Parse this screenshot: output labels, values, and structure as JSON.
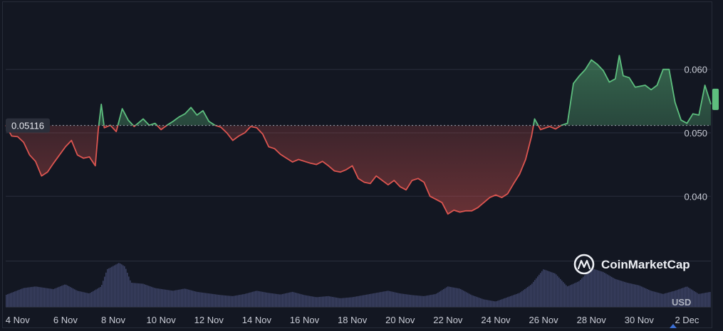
{
  "brand": {
    "name": "CoinMarketCap"
  },
  "currency": "USD",
  "colors": {
    "background": "#131722",
    "up": "#5dbe7e",
    "down": "#dc5550",
    "volume": "#3b4163",
    "grid": "#2a2f3d",
    "reference": "#9aa0ad",
    "text": "#c9ccd6"
  },
  "chart_data": {
    "type": "area",
    "reference_value": 0.05116,
    "reference_label": "0.05116",
    "x_range": [
      "2024-11-03T12:00",
      "2024-12-03T00:00"
    ],
    "ylim": [
      0.0295,
      0.0705
    ],
    "y_ticks": [
      {
        "value": 0.06,
        "label": "0.060"
      },
      {
        "value": 0.05,
        "label": "0.050"
      },
      {
        "value": 0.04,
        "label": "0.040"
      }
    ],
    "x_ticks": [
      {
        "x": "2024-11-04",
        "label": "4 Nov"
      },
      {
        "x": "2024-11-06",
        "label": "6 Nov"
      },
      {
        "x": "2024-11-08",
        "label": "8 Nov"
      },
      {
        "x": "2024-11-10",
        "label": "10 Nov"
      },
      {
        "x": "2024-11-12",
        "label": "12 Nov"
      },
      {
        "x": "2024-11-14",
        "label": "14 Nov"
      },
      {
        "x": "2024-11-16",
        "label": "16 Nov"
      },
      {
        "x": "2024-11-18",
        "label": "18 Nov"
      },
      {
        "x": "2024-11-20",
        "label": "20 Nov"
      },
      {
        "x": "2024-11-22",
        "label": "22 Nov"
      },
      {
        "x": "2024-11-24",
        "label": "24 Nov"
      },
      {
        "x": "2024-11-26",
        "label": "26 Nov"
      },
      {
        "x": "2024-11-28",
        "label": "28 Nov"
      },
      {
        "x": "2024-11-30",
        "label": "30 Nov"
      },
      {
        "x": "2024-12-02",
        "label": "2 Dec"
      }
    ],
    "grid": true,
    "series": [
      {
        "values": [
          [
            "2024-11-03T12:00",
            0.0512
          ],
          [
            "2024-11-03T18:00",
            0.0495
          ],
          [
            "2024-11-04T00:00",
            0.0494
          ],
          [
            "2024-11-04T06:00",
            0.0485
          ],
          [
            "2024-11-04T12:00",
            0.0465
          ],
          [
            "2024-11-04T18:00",
            0.0455
          ],
          [
            "2024-11-05T00:00",
            0.0432
          ],
          [
            "2024-11-05T06:00",
            0.0438
          ],
          [
            "2024-11-05T12:00",
            0.0452
          ],
          [
            "2024-11-05T18:00",
            0.0465
          ],
          [
            "2024-11-06T00:00",
            0.0478
          ],
          [
            "2024-11-06T06:00",
            0.0488
          ],
          [
            "2024-11-06T12:00",
            0.0465
          ],
          [
            "2024-11-06T18:00",
            0.046
          ],
          [
            "2024-11-07T00:00",
            0.0462
          ],
          [
            "2024-11-07T06:00",
            0.0448
          ],
          [
            "2024-11-07T09:00",
            0.0505
          ],
          [
            "2024-11-07T12:00",
            0.0545
          ],
          [
            "2024-11-07T15:00",
            0.0508
          ],
          [
            "2024-11-07T21:00",
            0.0512
          ],
          [
            "2024-11-08T03:00",
            0.0502
          ],
          [
            "2024-11-08T09:00",
            0.0538
          ],
          [
            "2024-11-08T15:00",
            0.052
          ],
          [
            "2024-11-08T21:00",
            0.051
          ],
          [
            "2024-11-09T06:00",
            0.0522
          ],
          [
            "2024-11-09T12:00",
            0.0512
          ],
          [
            "2024-11-09T18:00",
            0.0515
          ],
          [
            "2024-11-10T00:00",
            0.0505
          ],
          [
            "2024-11-10T06:00",
            0.0512
          ],
          [
            "2024-11-10T12:00",
            0.0518
          ],
          [
            "2024-11-10T18:00",
            0.0525
          ],
          [
            "2024-11-11T00:00",
            0.053
          ],
          [
            "2024-11-11T06:00",
            0.054
          ],
          [
            "2024-11-11T12:00",
            0.0528
          ],
          [
            "2024-11-11T18:00",
            0.0535
          ],
          [
            "2024-11-12T00:00",
            0.0518
          ],
          [
            "2024-11-12T06:00",
            0.0512
          ],
          [
            "2024-11-12T12:00",
            0.0509
          ],
          [
            "2024-11-12T18:00",
            0.05
          ],
          [
            "2024-11-13T00:00",
            0.0488
          ],
          [
            "2024-11-13T06:00",
            0.0495
          ],
          [
            "2024-11-13T12:00",
            0.05
          ],
          [
            "2024-11-13T18:00",
            0.051
          ],
          [
            "2024-11-14T00:00",
            0.0508
          ],
          [
            "2024-11-14T06:00",
            0.0498
          ],
          [
            "2024-11-14T12:00",
            0.0478
          ],
          [
            "2024-11-14T18:00",
            0.0475
          ],
          [
            "2024-11-15T00:00",
            0.0466
          ],
          [
            "2024-11-15T06:00",
            0.046
          ],
          [
            "2024-11-15T12:00",
            0.0454
          ],
          [
            "2024-11-15T18:00",
            0.0458
          ],
          [
            "2024-11-16T00:00",
            0.0455
          ],
          [
            "2024-11-16T06:00",
            0.0452
          ],
          [
            "2024-11-16T12:00",
            0.045
          ],
          [
            "2024-11-16T18:00",
            0.0455
          ],
          [
            "2024-11-17T00:00",
            0.0448
          ],
          [
            "2024-11-17T06:00",
            0.044
          ],
          [
            "2024-11-17T12:00",
            0.0438
          ],
          [
            "2024-11-17T18:00",
            0.0442
          ],
          [
            "2024-11-18T00:00",
            0.0448
          ],
          [
            "2024-11-18T06:00",
            0.0428
          ],
          [
            "2024-11-18T12:00",
            0.0422
          ],
          [
            "2024-11-18T18:00",
            0.042
          ],
          [
            "2024-11-19T00:00",
            0.0432
          ],
          [
            "2024-11-19T06:00",
            0.0425
          ],
          [
            "2024-11-19T12:00",
            0.0418
          ],
          [
            "2024-11-19T18:00",
            0.0425
          ],
          [
            "2024-11-20T00:00",
            0.0415
          ],
          [
            "2024-11-20T06:00",
            0.041
          ],
          [
            "2024-11-20T12:00",
            0.0425
          ],
          [
            "2024-11-20T18:00",
            0.0428
          ],
          [
            "2024-11-21T00:00",
            0.0422
          ],
          [
            "2024-11-21T06:00",
            0.04
          ],
          [
            "2024-11-21T12:00",
            0.0395
          ],
          [
            "2024-11-21T18:00",
            0.039
          ],
          [
            "2024-11-22T00:00",
            0.0372
          ],
          [
            "2024-11-22T06:00",
            0.0378
          ],
          [
            "2024-11-22T12:00",
            0.0375
          ],
          [
            "2024-11-22T18:00",
            0.0377
          ],
          [
            "2024-11-23T00:00",
            0.0377
          ],
          [
            "2024-11-23T06:00",
            0.0382
          ],
          [
            "2024-11-23T12:00",
            0.039
          ],
          [
            "2024-11-23T18:00",
            0.0398
          ],
          [
            "2024-11-24T00:00",
            0.0402
          ],
          [
            "2024-11-24T06:00",
            0.0398
          ],
          [
            "2024-11-24T12:00",
            0.0404
          ],
          [
            "2024-11-24T18:00",
            0.042
          ],
          [
            "2024-11-25T00:00",
            0.0435
          ],
          [
            "2024-11-25T06:00",
            0.0458
          ],
          [
            "2024-11-25T12:00",
            0.0495
          ],
          [
            "2024-11-25T15:00",
            0.0522
          ],
          [
            "2024-11-25T21:00",
            0.0505
          ],
          [
            "2024-11-26T06:00",
            0.051
          ],
          [
            "2024-11-26T12:00",
            0.0506
          ],
          [
            "2024-11-26T18:00",
            0.0512
          ],
          [
            "2024-11-27T00:00",
            0.0515
          ],
          [
            "2024-11-27T06:00",
            0.0578
          ],
          [
            "2024-11-27T12:00",
            0.059
          ],
          [
            "2024-11-27T18:00",
            0.06
          ],
          [
            "2024-11-28T00:00",
            0.0615
          ],
          [
            "2024-11-28T06:00",
            0.0608
          ],
          [
            "2024-11-28T12:00",
            0.0598
          ],
          [
            "2024-11-28T18:00",
            0.058
          ],
          [
            "2024-11-29T00:00",
            0.0585
          ],
          [
            "2024-11-29T04:00",
            0.0622
          ],
          [
            "2024-11-29T08:00",
            0.059
          ],
          [
            "2024-11-29T14:00",
            0.0587
          ],
          [
            "2024-11-29T20:00",
            0.0572
          ],
          [
            "2024-11-30T06:00",
            0.0575
          ],
          [
            "2024-11-30T12:00",
            0.0568
          ],
          [
            "2024-11-30T18:00",
            0.0575
          ],
          [
            "2024-12-01T00:00",
            0.06
          ],
          [
            "2024-12-01T06:00",
            0.06
          ],
          [
            "2024-12-01T12:00",
            0.0548
          ],
          [
            "2024-12-01T18:00",
            0.052
          ],
          [
            "2024-12-02T00:00",
            0.0515
          ],
          [
            "2024-12-02T06:00",
            0.053
          ],
          [
            "2024-12-02T12:00",
            0.0528
          ],
          [
            "2024-12-02T18:00",
            0.0575
          ],
          [
            "2024-12-03T00:00",
            0.0545
          ]
        ]
      }
    ],
    "volume": {
      "values": [
        [
          "2024-11-03T12:00",
          22
        ],
        [
          "2024-11-04T06:00",
          35
        ],
        [
          "2024-11-04T18:00",
          38
        ],
        [
          "2024-11-05T12:00",
          33
        ],
        [
          "2024-11-06T00:00",
          42
        ],
        [
          "2024-11-06T12:00",
          30
        ],
        [
          "2024-11-07T00:00",
          25
        ],
        [
          "2024-11-07T12:00",
          38
        ],
        [
          "2024-11-07T18:00",
          70
        ],
        [
          "2024-11-08T06:00",
          82
        ],
        [
          "2024-11-08T12:00",
          75
        ],
        [
          "2024-11-08T18:00",
          45
        ],
        [
          "2024-11-09T06:00",
          43
        ],
        [
          "2024-11-09T18:00",
          35
        ],
        [
          "2024-11-10T12:00",
          30
        ],
        [
          "2024-11-11T00:00",
          34
        ],
        [
          "2024-11-11T12:00",
          28
        ],
        [
          "2024-11-12T00:00",
          25
        ],
        [
          "2024-11-12T12:00",
          22
        ],
        [
          "2024-11-13T00:00",
          20
        ],
        [
          "2024-11-13T12:00",
          24
        ],
        [
          "2024-11-14T00:00",
          30
        ],
        [
          "2024-11-14T12:00",
          26
        ],
        [
          "2024-11-15T00:00",
          23
        ],
        [
          "2024-11-15T12:00",
          28
        ],
        [
          "2024-11-16T00:00",
          22
        ],
        [
          "2024-11-16T12:00",
          18
        ],
        [
          "2024-11-17T00:00",
          20
        ],
        [
          "2024-11-17T12:00",
          16
        ],
        [
          "2024-11-18T00:00",
          18
        ],
        [
          "2024-11-18T12:00",
          22
        ],
        [
          "2024-11-19T00:00",
          26
        ],
        [
          "2024-11-19T12:00",
          30
        ],
        [
          "2024-11-20T00:00",
          25
        ],
        [
          "2024-11-20T12:00",
          22
        ],
        [
          "2024-11-21T00:00",
          20
        ],
        [
          "2024-11-21T12:00",
          24
        ],
        [
          "2024-11-22T00:00",
          38
        ],
        [
          "2024-11-22T12:00",
          34
        ],
        [
          "2024-11-23T00:00",
          22
        ],
        [
          "2024-11-23T12:00",
          14
        ],
        [
          "2024-11-24T00:00",
          10
        ],
        [
          "2024-11-24T12:00",
          18
        ],
        [
          "2024-11-25T00:00",
          26
        ],
        [
          "2024-11-25T12:00",
          42
        ],
        [
          "2024-11-26T00:00",
          70
        ],
        [
          "2024-11-26T12:00",
          62
        ],
        [
          "2024-11-27T00:00",
          38
        ],
        [
          "2024-11-27T12:00",
          48
        ],
        [
          "2024-11-28T00:00",
          72
        ],
        [
          "2024-11-28T12:00",
          65
        ],
        [
          "2024-11-29T00:00",
          52
        ],
        [
          "2024-11-29T12:00",
          45
        ],
        [
          "2024-11-30T00:00",
          40
        ],
        [
          "2024-11-30T12:00",
          30
        ],
        [
          "2024-12-01T00:00",
          24
        ],
        [
          "2024-12-01T12:00",
          30
        ],
        [
          "2024-12-02T00:00",
          38
        ],
        [
          "2024-12-02T12:00",
          24
        ],
        [
          "2024-12-03T00:00",
          28
        ]
      ]
    }
  }
}
